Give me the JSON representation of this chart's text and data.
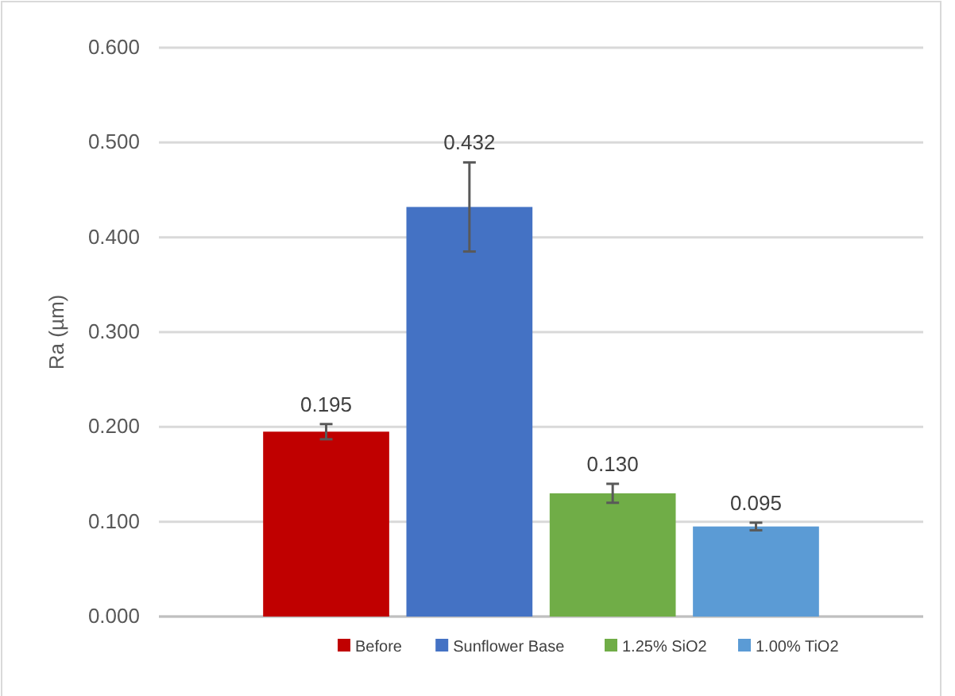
{
  "chart_data": {
    "type": "bar",
    "ylabel": "Ra (µm)",
    "categories": [
      null
    ],
    "series": [
      {
        "name": "Before",
        "color": "#c00000",
        "values": [
          0.195
        ],
        "value_labels": [
          "0.195"
        ],
        "errors": [
          0.008
        ]
      },
      {
        "name": "Sunflower Base",
        "color": "#4472c4",
        "values": [
          0.432
        ],
        "value_labels": [
          "0.432"
        ],
        "errors": [
          0.047
        ]
      },
      {
        "name": "1.25% SiO2",
        "color": "#70ad47",
        "values": [
          0.13
        ],
        "value_labels": [
          "0.130"
        ],
        "errors": [
          0.01
        ]
      },
      {
        "name": "1.00% TiO2",
        "color": "#5b9bd5",
        "values": [
          0.095
        ],
        "value_labels": [
          "0.095"
        ],
        "errors": [
          0.004
        ]
      }
    ],
    "ylim": [
      0,
      0.6
    ],
    "yticks": [
      {
        "value": 0,
        "label": "0.000"
      },
      {
        "value": 0.1,
        "label": "0.100"
      },
      {
        "value": 0.2,
        "label": "0.200"
      },
      {
        "value": 0.3,
        "label": "0.300"
      },
      {
        "value": 0.4,
        "label": "0.400"
      },
      {
        "value": 0.5,
        "label": "0.500"
      },
      {
        "value": 0.6,
        "label": "0.600"
      }
    ],
    "grid": "y",
    "legend": "bottom"
  }
}
